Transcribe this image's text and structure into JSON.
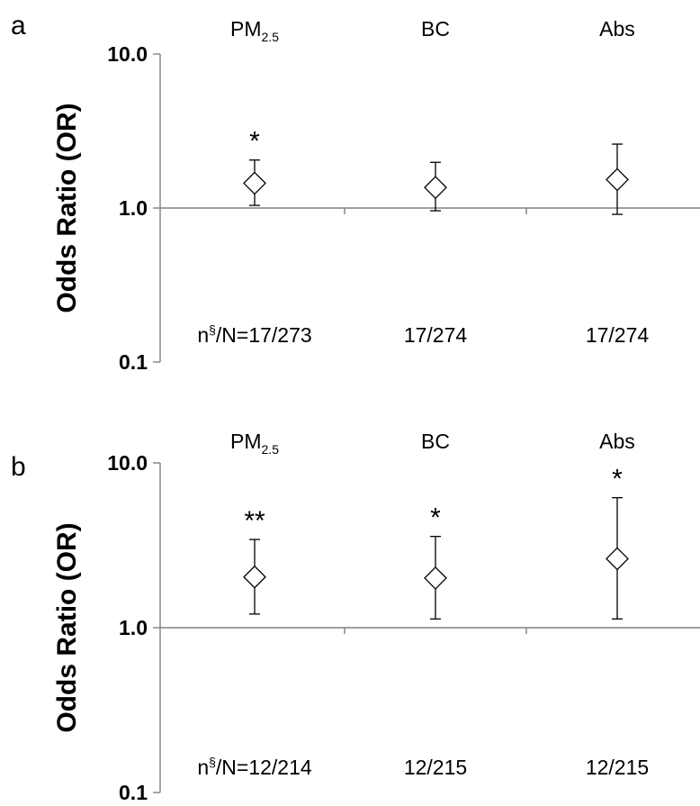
{
  "chart_data": [
    {
      "type": "scatter",
      "panel": "a",
      "ylabel": "Odds Ratio (OR)",
      "yscale": "log",
      "ylim": [
        0.1,
        10.0
      ],
      "yticks": [
        "0.1",
        "1.0",
        "10.0"
      ],
      "reference_line": 1.0,
      "categories": [
        {
          "main": "PM",
          "sub": "2.5"
        },
        {
          "main": "BC",
          "sub": ""
        },
        {
          "main": "Abs",
          "sub": ""
        }
      ],
      "points": [
        {
          "or": 1.45,
          "lower": 1.04,
          "upper": 2.05,
          "significance": "*",
          "n_label": {
            "prefix": "n",
            "sup": "§",
            "text": "/N=17/273"
          }
        },
        {
          "or": 1.36,
          "lower": 0.96,
          "upper": 1.98,
          "significance": "",
          "n_label": {
            "prefix": "",
            "sup": "",
            "text": "17/274"
          }
        },
        {
          "or": 1.53,
          "lower": 0.91,
          "upper": 2.6,
          "significance": "",
          "n_label": {
            "prefix": "",
            "sup": "",
            "text": "17/274"
          }
        }
      ]
    },
    {
      "type": "scatter",
      "panel": "b",
      "ylabel": "Odds Ratio (OR)",
      "yscale": "log",
      "ylim": [
        0.1,
        10.0
      ],
      "yticks": [
        "0.1",
        "1.0",
        "10.0"
      ],
      "reference_line": 1.0,
      "categories": [
        {
          "main": "PM",
          "sub": "2.5"
        },
        {
          "main": "BC",
          "sub": ""
        },
        {
          "main": "Abs",
          "sub": ""
        }
      ],
      "points": [
        {
          "or": 2.03,
          "lower": 1.21,
          "upper": 3.43,
          "significance": "**",
          "n_label": {
            "prefix": "n",
            "sup": "§",
            "text": "/N=12/214"
          }
        },
        {
          "or": 2.0,
          "lower": 1.13,
          "upper": 3.58,
          "significance": "*",
          "n_label": {
            "prefix": "",
            "sup": "",
            "text": "12/215"
          }
        },
        {
          "or": 2.62,
          "lower": 1.13,
          "upper": 6.15,
          "significance": "*",
          "n_label": {
            "prefix": "",
            "sup": "",
            "text": "12/215"
          }
        }
      ]
    }
  ]
}
